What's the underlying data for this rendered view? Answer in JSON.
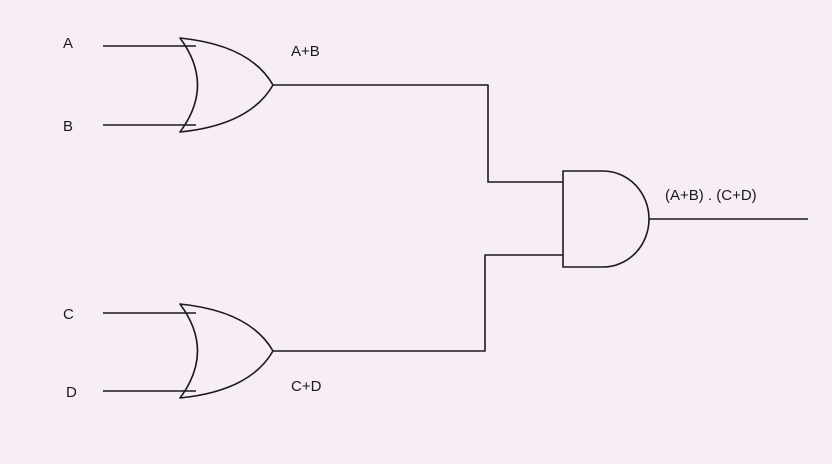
{
  "diagram": {
    "inputs": {
      "a": "A",
      "b": "B",
      "c": "C",
      "d": "D"
    },
    "gates": [
      {
        "type": "OR",
        "output_label": "A+B"
      },
      {
        "type": "OR",
        "output_label": "C+D"
      },
      {
        "type": "AND",
        "output_label": "(A+B) . (C+D)"
      }
    ]
  }
}
